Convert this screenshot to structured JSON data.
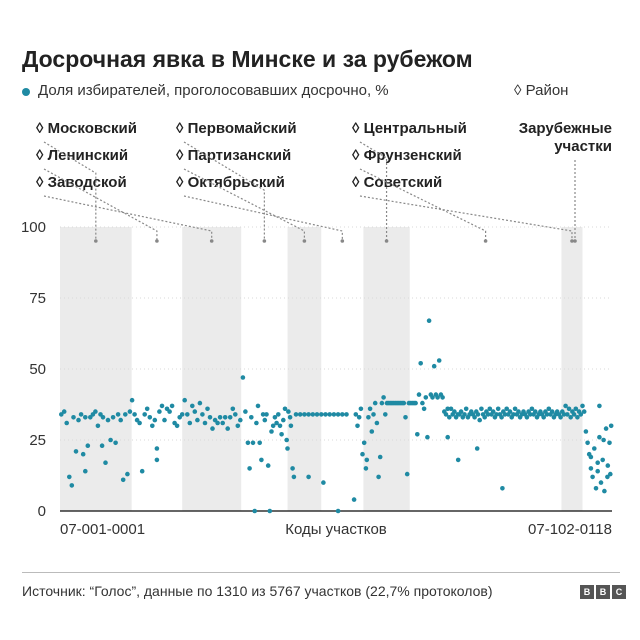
{
  "title": "Досрочная явка в Минске и за рубежом",
  "legend": {
    "series_label": "Доля избирателей, проголосовавших досрочно, %",
    "district_label": "Район"
  },
  "district_glyph": "◊",
  "districts": [
    {
      "name": "Московский",
      "start": 0,
      "end": 170
    },
    {
      "name": "Ленинский",
      "start": 170,
      "end": 290
    },
    {
      "name": "Заводской",
      "start": 290,
      "end": 430
    },
    {
      "name": "Первомайский",
      "start": 430,
      "end": 540
    },
    {
      "name": "Партизанский",
      "start": 540,
      "end": 620
    },
    {
      "name": "Октябрьский",
      "start": 620,
      "end": 720
    },
    {
      "name": "Центральный",
      "start": 720,
      "end": 830
    },
    {
      "name": "Фрунзенский",
      "start": 830,
      "end": 1190
    },
    {
      "name": "Советский",
      "start": 1190,
      "end": 1240
    },
    {
      "name": "Зарубежные участки",
      "start": 1240,
      "end": 1310
    }
  ],
  "colors": {
    "point": "#1f8aa3",
    "band": "#ebebeb",
    "axis": "#333333",
    "grid": "#d9d9d9",
    "leader": "#888888"
  },
  "source": "Источник: “Голос”, данные по 1310 из 5767 участков (22,7% протоколов)",
  "brand": [
    "B",
    "B",
    "C"
  ],
  "chart_data": {
    "type": "scatter",
    "title": "Досрочная явка в Минске и за рубежом",
    "xlabel": "Коды участков",
    "ylabel": "",
    "x_tick_labels": [
      "07-001-0001",
      "07-102-0118"
    ],
    "yticks": [
      0,
      25,
      50,
      75,
      100
    ],
    "ylim": [
      0,
      100
    ],
    "xlim": [
      0,
      1310
    ],
    "grid": false,
    "series": [
      {
        "points": [
          [
            3,
            34
          ],
          [
            10,
            35
          ],
          [
            16,
            31
          ],
          [
            22,
            12
          ],
          [
            28,
            9
          ],
          [
            32,
            33
          ],
          [
            38,
            21
          ],
          [
            44,
            32
          ],
          [
            50,
            34
          ],
          [
            55,
            20
          ],
          [
            60,
            33
          ],
          [
            66,
            23
          ],
          [
            72,
            33
          ],
          [
            78,
            34
          ],
          [
            84,
            35
          ],
          [
            90,
            30
          ],
          [
            96,
            34
          ],
          [
            102,
            33
          ],
          [
            108,
            17
          ],
          [
            114,
            32
          ],
          [
            120,
            25
          ],
          [
            126,
            33
          ],
          [
            132,
            24
          ],
          [
            138,
            34
          ],
          [
            144,
            32
          ],
          [
            150,
            11
          ],
          [
            155,
            34
          ],
          [
            160,
            13
          ],
          [
            166,
            35
          ],
          [
            171,
            39
          ],
          [
            177,
            34
          ],
          [
            183,
            32
          ],
          [
            189,
            31
          ],
          [
            195,
            14
          ],
          [
            201,
            34
          ],
          [
            207,
            36
          ],
          [
            213,
            33
          ],
          [
            219,
            30
          ],
          [
            225,
            32
          ],
          [
            230,
            22
          ],
          [
            236,
            35
          ],
          [
            242,
            37
          ],
          [
            248,
            32
          ],
          [
            254,
            36
          ],
          [
            260,
            35
          ],
          [
            266,
            37
          ],
          [
            272,
            31
          ],
          [
            278,
            30
          ],
          [
            284,
            33
          ],
          [
            290,
            34
          ],
          [
            296,
            39
          ],
          [
            302,
            34
          ],
          [
            308,
            31
          ],
          [
            314,
            37
          ],
          [
            320,
            35
          ],
          [
            326,
            32
          ],
          [
            332,
            38
          ],
          [
            338,
            34
          ],
          [
            344,
            31
          ],
          [
            350,
            36
          ],
          [
            356,
            33
          ],
          [
            362,
            29
          ],
          [
            368,
            32
          ],
          [
            374,
            31
          ],
          [
            380,
            33
          ],
          [
            386,
            31
          ],
          [
            392,
            33
          ],
          [
            398,
            29
          ],
          [
            404,
            33
          ],
          [
            410,
            36
          ],
          [
            416,
            34
          ],
          [
            422,
            30
          ],
          [
            428,
            32
          ],
          [
            434,
            47
          ],
          [
            440,
            35
          ],
          [
            446,
            24
          ],
          [
            450,
            15
          ],
          [
            454,
            33
          ],
          [
            458,
            24
          ],
          [
            462,
            0
          ],
          [
            466,
            31
          ],
          [
            470,
            37
          ],
          [
            474,
            24
          ],
          [
            478,
            18
          ],
          [
            482,
            34
          ],
          [
            486,
            32
          ],
          [
            490,
            34
          ],
          [
            494,
            16
          ],
          [
            498,
            0
          ],
          [
            502,
            28
          ],
          [
            506,
            30
          ],
          [
            510,
            33
          ],
          [
            514,
            31
          ],
          [
            518,
            34
          ],
          [
            522,
            30
          ],
          [
            526,
            27
          ],
          [
            530,
            32
          ],
          [
            534,
            36
          ],
          [
            538,
            25
          ],
          [
            542,
            35
          ],
          [
            546,
            33
          ],
          [
            548,
            30
          ],
          [
            552,
            15
          ],
          [
            555,
            12
          ],
          [
            560,
            34
          ],
          [
            570,
            34
          ],
          [
            580,
            34
          ],
          [
            590,
            34
          ],
          [
            600,
            34
          ],
          [
            610,
            34
          ],
          [
            620,
            34
          ],
          [
            630,
            34
          ],
          [
            640,
            34
          ],
          [
            650,
            34
          ],
          [
            660,
            34
          ],
          [
            670,
            34
          ],
          [
            680,
            34
          ],
          [
            590,
            12
          ],
          [
            625,
            10
          ],
          [
            660,
            0
          ],
          [
            698,
            4
          ],
          [
            702,
            34
          ],
          [
            706,
            30
          ],
          [
            710,
            33
          ],
          [
            714,
            36
          ],
          [
            718,
            20
          ],
          [
            722,
            24
          ],
          [
            726,
            15
          ],
          [
            728,
            18
          ],
          [
            732,
            33
          ],
          [
            736,
            36
          ],
          [
            740,
            28
          ],
          [
            744,
            34
          ],
          [
            748,
            38
          ],
          [
            752,
            31
          ],
          [
            756,
            12
          ],
          [
            760,
            19
          ],
          [
            764,
            38
          ],
          [
            768,
            40
          ],
          [
            772,
            34
          ],
          [
            776,
            38
          ],
          [
            780,
            38
          ],
          [
            784,
            38
          ],
          [
            788,
            38
          ],
          [
            792,
            38
          ],
          [
            796,
            38
          ],
          [
            800,
            38
          ],
          [
            804,
            38
          ],
          [
            808,
            38
          ],
          [
            812,
            38
          ],
          [
            816,
            38
          ],
          [
            820,
            33
          ],
          [
            824,
            13
          ],
          [
            828,
            38
          ],
          [
            832,
            38
          ],
          [
            836,
            38
          ],
          [
            840,
            38
          ],
          [
            844,
            38
          ],
          [
            848,
            27
          ],
          [
            852,
            41
          ],
          [
            856,
            52
          ],
          [
            860,
            38
          ],
          [
            864,
            36
          ],
          [
            868,
            40
          ],
          [
            872,
            26
          ],
          [
            876,
            67
          ],
          [
            880,
            41
          ],
          [
            884,
            40
          ],
          [
            888,
            51
          ],
          [
            892,
            41
          ],
          [
            896,
            40
          ],
          [
            900,
            53
          ],
          [
            904,
            41
          ],
          [
            908,
            40
          ],
          [
            912,
            35
          ],
          [
            916,
            34
          ],
          [
            920,
            36
          ],
          [
            924,
            33
          ],
          [
            928,
            36
          ],
          [
            932,
            34
          ],
          [
            936,
            35
          ],
          [
            940,
            33
          ],
          [
            944,
            34
          ],
          [
            948,
            34
          ],
          [
            952,
            35
          ],
          [
            956,
            33
          ],
          [
            960,
            34
          ],
          [
            964,
            36
          ],
          [
            968,
            33
          ],
          [
            972,
            34
          ],
          [
            976,
            35
          ],
          [
            980,
            34
          ],
          [
            984,
            33
          ],
          [
            988,
            35
          ],
          [
            992,
            34
          ],
          [
            996,
            32
          ],
          [
            1000,
            36
          ],
          [
            1004,
            34
          ],
          [
            1008,
            33
          ],
          [
            1012,
            35
          ],
          [
            1016,
            34
          ],
          [
            1020,
            36
          ],
          [
            1024,
            34
          ],
          [
            1028,
            35
          ],
          [
            1032,
            33
          ],
          [
            1036,
            34
          ],
          [
            1040,
            36
          ],
          [
            1044,
            34
          ],
          [
            1048,
            33
          ],
          [
            1052,
            35
          ],
          [
            1056,
            34
          ],
          [
            1060,
            36
          ],
          [
            1064,
            34
          ],
          [
            1068,
            35
          ],
          [
            1072,
            33
          ],
          [
            1076,
            34
          ],
          [
            1080,
            36
          ],
          [
            1084,
            34
          ],
          [
            1088,
            35
          ],
          [
            1092,
            33
          ],
          [
            1096,
            34
          ],
          [
            1100,
            35
          ],
          [
            1104,
            34
          ],
          [
            1108,
            33
          ],
          [
            1112,
            35
          ],
          [
            1116,
            34
          ],
          [
            1120,
            36
          ],
          [
            1124,
            34
          ],
          [
            1128,
            35
          ],
          [
            1132,
            33
          ],
          [
            1136,
            34
          ],
          [
            1140,
            35
          ],
          [
            1144,
            34
          ],
          [
            1148,
            33
          ],
          [
            1152,
            35
          ],
          [
            1156,
            34
          ],
          [
            1160,
            36
          ],
          [
            1164,
            34
          ],
          [
            1168,
            35
          ],
          [
            1172,
            33
          ],
          [
            1176,
            34
          ],
          [
            1180,
            35
          ],
          [
            1184,
            34
          ],
          [
            1188,
            33
          ],
          [
            1192,
            35
          ],
          [
            1196,
            34
          ],
          [
            1200,
            37
          ],
          [
            1204,
            34
          ],
          [
            1208,
            36
          ],
          [
            1212,
            33
          ],
          [
            1216,
            35
          ],
          [
            1220,
            34
          ],
          [
            1224,
            36
          ],
          [
            1228,
            33
          ],
          [
            1232,
            35
          ],
          [
            1236,
            34
          ],
          [
            1240,
            37
          ],
          [
            1244,
            35
          ],
          [
            1248,
            28
          ],
          [
            1252,
            24
          ],
          [
            1256,
            20
          ],
          [
            1260,
            15
          ],
          [
            1264,
            12
          ],
          [
            1268,
            22
          ],
          [
            1272,
            8
          ],
          [
            1276,
            14
          ],
          [
            1280,
            26
          ],
          [
            1284,
            10
          ],
          [
            1288,
            18
          ],
          [
            1292,
            7
          ],
          [
            1296,
            29
          ],
          [
            1300,
            16
          ],
          [
            1304,
            24
          ],
          [
            1306,
            13
          ],
          [
            1308,
            30
          ],
          [
            1280,
            37
          ],
          [
            1290,
            25
          ],
          [
            1276,
            17
          ],
          [
            1299,
            12
          ],
          [
            1260,
            19
          ],
          [
            1050,
            8
          ],
          [
            990,
            22
          ],
          [
            945,
            18
          ],
          [
            920,
            26
          ],
          [
            540,
            22
          ],
          [
            230,
            18
          ],
          [
            100,
            23
          ],
          [
            60,
            14
          ]
        ]
      }
    ]
  }
}
